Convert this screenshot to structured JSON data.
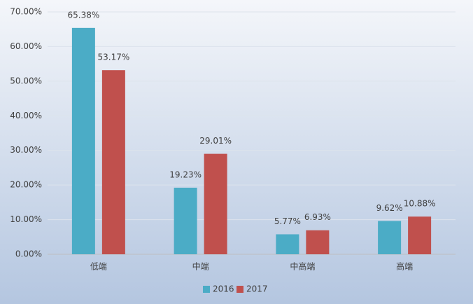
{
  "chart_data": {
    "type": "bar",
    "categories": [
      "低端",
      "中端",
      "中高端",
      "高端"
    ],
    "series": [
      {
        "name": "2016",
        "color": "#4bacc6",
        "values": [
          65.38,
          19.23,
          5.77,
          9.62
        ],
        "value_labels": [
          "65.38%",
          "19.23%",
          "5.77%",
          "9.62%"
        ]
      },
      {
        "name": "2017",
        "color": "#c0504d",
        "values": [
          53.17,
          29.01,
          6.93,
          10.88
        ],
        "value_labels": [
          "53.17%",
          "29.01%",
          "6.93%",
          "10.88%"
        ]
      }
    ],
    "ylim": [
      0,
      70
    ],
    "yticks": [
      {
        "value": 0,
        "label": "0.00%"
      },
      {
        "value": 10,
        "label": "10.00%"
      },
      {
        "value": 20,
        "label": "20.00%"
      },
      {
        "value": 30,
        "label": "30.00%"
      },
      {
        "value": 40,
        "label": "40.00%"
      },
      {
        "value": 50,
        "label": "50.00%"
      },
      {
        "value": 60,
        "label": "60.00%"
      },
      {
        "value": 70,
        "label": "70.00%"
      }
    ],
    "grid": true,
    "legend": "bottom"
  }
}
